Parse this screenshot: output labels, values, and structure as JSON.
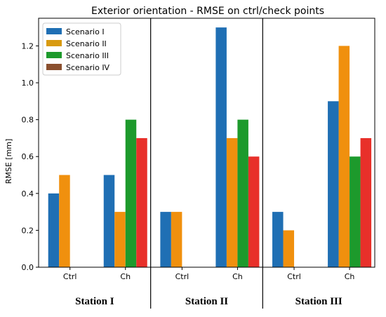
{
  "chart_data": {
    "type": "bar",
    "title": "Exterior orientation - RMSE on ctrl/check points",
    "ylabel": "RMSE [mm]",
    "ylim": [
      0,
      1.35
    ],
    "yticks": [
      "0.0",
      "0.2",
      "0.4",
      "0.6",
      "0.8",
      "1.0",
      "1.2"
    ],
    "legend_position": "top-left",
    "groups": [
      {
        "label": "Station I",
        "categories": [
          "Ctrl",
          "Ch"
        ],
        "values": [
          [
            0.4,
            0.5,
            null,
            null
          ],
          [
            0.5,
            0.3,
            0.8,
            0.7
          ]
        ]
      },
      {
        "label": "Station II",
        "categories": [
          "Ctrl",
          "Ch"
        ],
        "values": [
          [
            0.3,
            0.3,
            null,
            null
          ],
          [
            1.3,
            0.7,
            0.8,
            0.6
          ]
        ]
      },
      {
        "label": "Station III",
        "categories": [
          "Ctrl",
          "Ch"
        ],
        "values": [
          [
            0.3,
            0.2,
            null,
            null
          ],
          [
            0.9,
            1.2,
            0.6,
            0.7
          ]
        ]
      }
    ],
    "series": [
      {
        "name": "Scenario I",
        "color": "#1f6fb4"
      },
      {
        "name": "Scenario II",
        "color": "#f0900e"
      },
      {
        "name": "Scenario III",
        "color": "#1d9a2c"
      },
      {
        "name": "Scenario IV",
        "color": "#e8302a"
      }
    ],
    "legend_swatches": [
      "#1f6fb4",
      "#d89a10",
      "#1d9a2c",
      "#8a4f2e"
    ]
  }
}
